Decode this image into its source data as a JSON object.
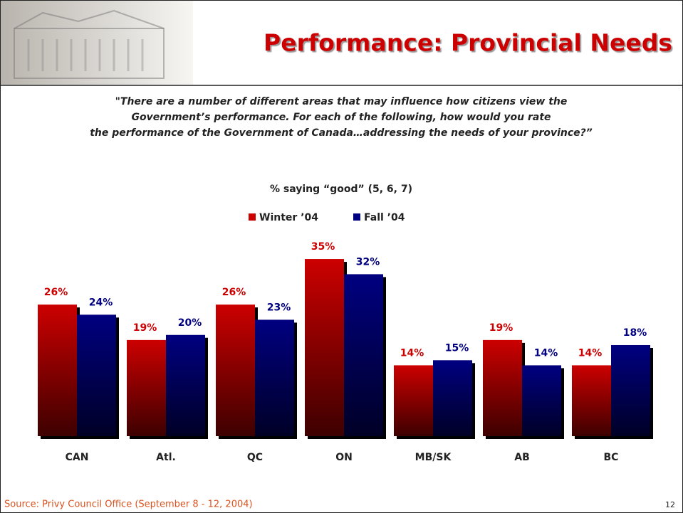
{
  "header": {
    "title": "Performance: Provincial Needs",
    "question": [
      "\"There are a number of different areas that may influence how citizens view the",
      "Government’s performance. For each of the following, how would you rate",
      "the performance of the Government of Canada…addressing the needs of your province?”"
    ]
  },
  "chart_data": {
    "type": "bar",
    "title": "% saying “good” (5, 6, 7)",
    "categories": [
      "CAN",
      "Atl.",
      "QC",
      "ON",
      "MB/SK",
      "AB",
      "BC"
    ],
    "series": [
      {
        "name": "Winter ’04",
        "color": "#cc0000",
        "values": [
          26,
          19,
          26,
          35,
          14,
          19,
          14
        ],
        "value_labels": [
          "26%",
          "19%",
          "26%",
          "35%",
          "14%",
          "19%",
          "14%"
        ]
      },
      {
        "name": "Fall ’04",
        "color": "#000080",
        "values": [
          24,
          20,
          23,
          32,
          15,
          14,
          18
        ],
        "value_labels": [
          "24%",
          "20%",
          "23%",
          "32%",
          "15%",
          "14%",
          "18%"
        ]
      }
    ],
    "ylim": [
      0,
      40
    ],
    "grid": false
  },
  "footer": {
    "source": "Source: Privy Council Office (September 8 - 12, 2004)",
    "page": "12"
  }
}
